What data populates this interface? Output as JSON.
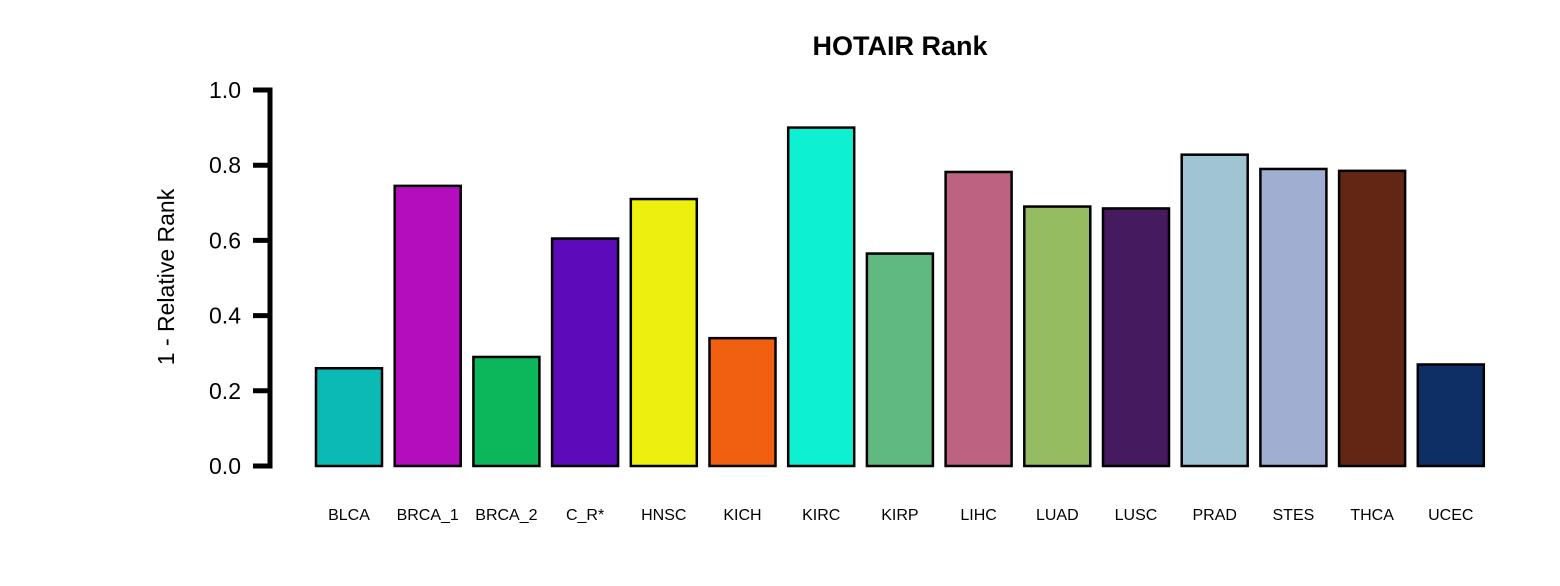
{
  "chart_data": {
    "type": "bar",
    "title": "HOTAIR Rank",
    "xlabel": "",
    "ylabel": "1 - Relative Rank",
    "ylim": [
      0,
      1.0
    ],
    "yticks": [
      "0.0",
      "0.2",
      "0.4",
      "0.6",
      "0.8",
      "1.0"
    ],
    "grid": false,
    "legend": "none",
    "categories": [
      "BLCA",
      "BRCA_1",
      "BRCA_2",
      "C_R*",
      "HNSC",
      "KICH",
      "KIRC",
      "KIRP",
      "LIHC",
      "LUAD",
      "LUSC",
      "PRAD",
      "STES",
      "THCA",
      "UCEC"
    ],
    "values": [
      0.26,
      0.745,
      0.29,
      0.605,
      0.71,
      0.34,
      0.9,
      0.565,
      0.782,
      0.69,
      0.685,
      0.828,
      0.79,
      0.785,
      0.27
    ],
    "colors": [
      "#0BBAB5",
      "#B40DBE",
      "#0BB75A",
      "#5C0ABA",
      "#EDEF0E",
      "#F06010",
      "#0EF0D2",
      "#60BA80",
      "#BD6280",
      "#96BC62",
      "#461A5E",
      "#A0C4D2",
      "#A0AED2",
      "#642614",
      "#0E2F66"
    ]
  }
}
